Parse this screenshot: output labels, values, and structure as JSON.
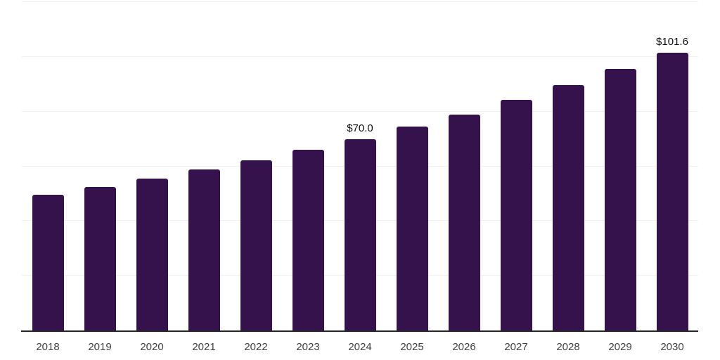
{
  "chart_data": {
    "type": "bar",
    "title": "",
    "xlabel": "",
    "ylabel": "",
    "categories": [
      "2018",
      "2019",
      "2020",
      "2021",
      "2022",
      "2023",
      "2024",
      "2025",
      "2026",
      "2027",
      "2028",
      "2029",
      "2030"
    ],
    "values": [
      49.6,
      52.4,
      55.6,
      58.9,
      62.3,
      66.1,
      70.0,
      74.5,
      79.0,
      84.3,
      89.6,
      95.5,
      101.6
    ],
    "data_labels": {
      "2024": "$70.0",
      "2030": "$101.6"
    },
    "ylim": [
      0,
      120
    ],
    "gridline_values": [
      20,
      40,
      60,
      80,
      100,
      120
    ],
    "grid": "horizontal",
    "y_tick_labels": "none",
    "legend": "none",
    "colors": {
      "bar": "#35124B",
      "gridline": "#f1f1f1",
      "axis_line": "#262626",
      "tick_label": "#404040",
      "data_label": "#0d0d0d",
      "background": "#ffffff"
    }
  }
}
